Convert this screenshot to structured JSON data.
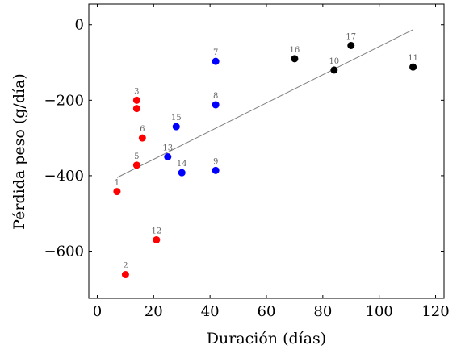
{
  "chart_data": {
    "type": "scatter",
    "xlabel": "Duración (días)",
    "ylabel": "Pérdida peso (g/día)",
    "xlim": [
      -3,
      123
    ],
    "ylim": [
      -725,
      55
    ],
    "xticks": [
      0,
      20,
      40,
      60,
      80,
      100,
      120
    ],
    "yticks": [
      0,
      -200,
      -400,
      -600
    ],
    "xtick_labels": [
      "0",
      "20",
      "40",
      "60",
      "80",
      "100",
      "120"
    ],
    "ytick_labels": [
      "0",
      "−200",
      "−400",
      "−600"
    ],
    "grid": false,
    "colors": {
      "red": "#ff0000",
      "blue": "#0000ff",
      "black": "#000000",
      "trend": "#808080"
    },
    "points": [
      {
        "label": "1",
        "x": 7,
        "y": -442,
        "color": "red"
      },
      {
        "label": "2",
        "x": 10,
        "y": -662,
        "color": "red"
      },
      {
        "label": "3",
        "x": 14,
        "y": -200,
        "color": "red"
      },
      {
        "label": "",
        "x": 14,
        "y": -222,
        "color": "red"
      },
      {
        "label": "5",
        "x": 14,
        "y": -372,
        "color": "red"
      },
      {
        "label": "6",
        "x": 16,
        "y": -300,
        "color": "red"
      },
      {
        "label": "12",
        "x": 21,
        "y": -570,
        "color": "red"
      },
      {
        "label": "13",
        "x": 25,
        "y": -350,
        "color": "blue"
      },
      {
        "label": "15",
        "x": 28,
        "y": -270,
        "color": "blue"
      },
      {
        "label": "14",
        "x": 30,
        "y": -392,
        "color": "blue"
      },
      {
        "label": "7",
        "x": 42,
        "y": -97,
        "color": "blue"
      },
      {
        "label": "8",
        "x": 42,
        "y": -212,
        "color": "blue"
      },
      {
        "label": "9",
        "x": 42,
        "y": -386,
        "color": "blue"
      },
      {
        "label": "16",
        "x": 70,
        "y": -90,
        "color": "black"
      },
      {
        "label": "10",
        "x": 84,
        "y": -120,
        "color": "black"
      },
      {
        "label": "17",
        "x": 90,
        "y": -55,
        "color": "black"
      },
      {
        "label": "11",
        "x": 112,
        "y": -112,
        "color": "black"
      }
    ],
    "trendline": {
      "x": [
        7,
        112
      ],
      "y": [
        -405,
        -13
      ]
    }
  }
}
